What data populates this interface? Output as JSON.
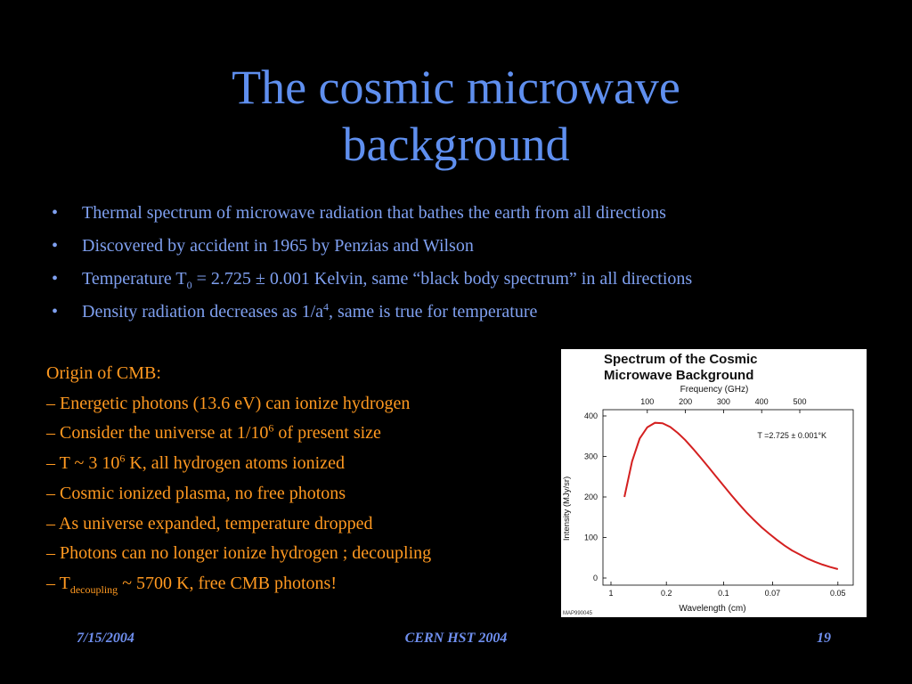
{
  "slide": {
    "title_line1": "The cosmic microwave",
    "title_line2": "background",
    "bullet_char": "•",
    "bullets": {
      "b1": "Thermal spectrum of microwave radiation that bathes the earth from all directions",
      "b2": "Discovered by accident in 1965 by Penzias and Wilson",
      "b3_pre": "Temperature T",
      "b3_sub": "0",
      "b3_post": " = 2.725 ± 0.001 Kelvin, same “black body spectrum” in all directions",
      "b4_pre": "Density radiation decreases as 1/a",
      "b4_sup": "4",
      "b4_post": ", same is true for temperature"
    },
    "origin": {
      "heading": "Origin of CMB:",
      "l1": "– Energetic photons (13.6 eV) can ionize hydrogen",
      "l2_pre": "– Consider the universe at 1/10",
      "l2_sup": "6",
      "l2_post": " of present size",
      "l3_pre": "– T ~ 3 10",
      "l3_sup": "6",
      "l3_post": " K, all hydrogen atoms ionized",
      "l4": "– Cosmic ionized plasma, no free photons",
      "l5": "– As universe expanded, temperature dropped",
      "l6": "– Photons can no longer ionize hydrogen ; decoupling",
      "l7_pre": "– T",
      "l7_sub": "decoupling",
      "l7_post": " ~ 5700 K, free CMB photons!"
    },
    "footer": {
      "date": "7/15/2004",
      "center": "CERN HST 2004",
      "page": "19"
    },
    "colors": {
      "title": "#5f8fef",
      "bullets": "#7fa0f0",
      "origin": "#ff9920",
      "curve": "#d42020"
    }
  },
  "chart_data": {
    "type": "line",
    "title_line1": "Spectrum of the Cosmic",
    "title_line2": "Microwave Background",
    "top_axis_label": "Frequency (GHz)",
    "top_ticks": [
      "100",
      "200",
      "300",
      "400",
      "500"
    ],
    "xlabel": "Wavelength (cm)",
    "x_ticks": [
      "1",
      "0.2",
      "0.1",
      "0.07",
      "0.05"
    ],
    "ylabel": "Intensity (MJy/sr)",
    "y_ticks": [
      "400",
      "300",
      "200",
      "100",
      "0"
    ],
    "ylim": [
      0,
      400
    ],
    "annotation": "T =2.725 ± 0.001°K",
    "code": "MAP990045",
    "series": [
      {
        "frequency_ghz": [
          40,
          60,
          80,
          100,
          120,
          140,
          160,
          180,
          200,
          220,
          240,
          260,
          280,
          300,
          320,
          340,
          360,
          380,
          400,
          420,
          440,
          460,
          480,
          500,
          520,
          540,
          560,
          580,
          600
        ],
        "intensity": [
          200,
          288,
          344,
          372,
          383,
          382,
          373,
          358,
          340,
          319,
          297,
          274,
          251,
          228,
          205,
          183,
          162,
          143,
          125,
          109,
          94,
          80,
          68,
          58,
          48,
          40,
          33,
          27,
          22
        ]
      }
    ]
  }
}
